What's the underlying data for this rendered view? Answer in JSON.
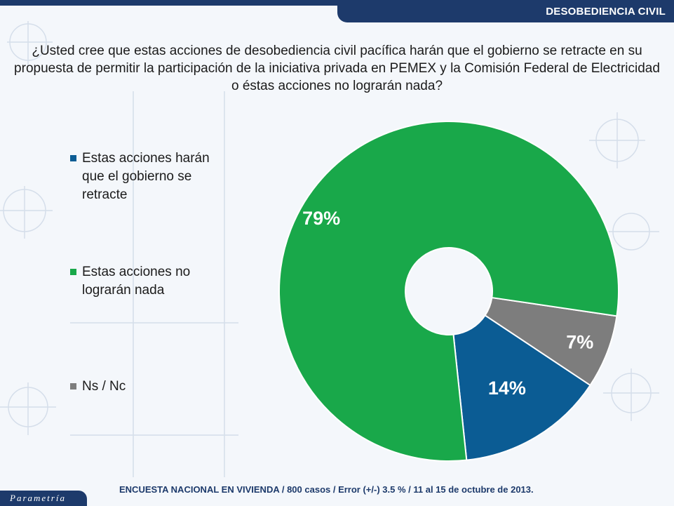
{
  "header": {
    "section": "DESOBEDIENCIA CIVIL"
  },
  "question": "¿Usted cree que estas acciones de desobediencia civil pacífica harán que el gobierno se retracte en su propuesta de permitir la participación de la iniciativa privada en PEMEX y la Comisión Federal de Electricidad o éstas acciones no lograrán nada?",
  "chart_data": {
    "type": "pie",
    "donut": true,
    "legend_position": "left",
    "categories": [
      "Estas acciones harán que el gobierno se retracte",
      "Estas acciones no lograrán nada",
      "Ns / Nc"
    ],
    "values": [
      14,
      79,
      7
    ],
    "labels": [
      "14%",
      "79%",
      "7%"
    ],
    "colors": [
      "#0b5c94",
      "#19a84a",
      "#7d7d7d"
    ]
  },
  "footer": {
    "logo_text": "Parametría",
    "note": "ENCUESTA NACIONAL EN VIVIENDA / 800 casos / Error (+/-) 3.5 % / 11 al 15 de octubre de 2013."
  }
}
